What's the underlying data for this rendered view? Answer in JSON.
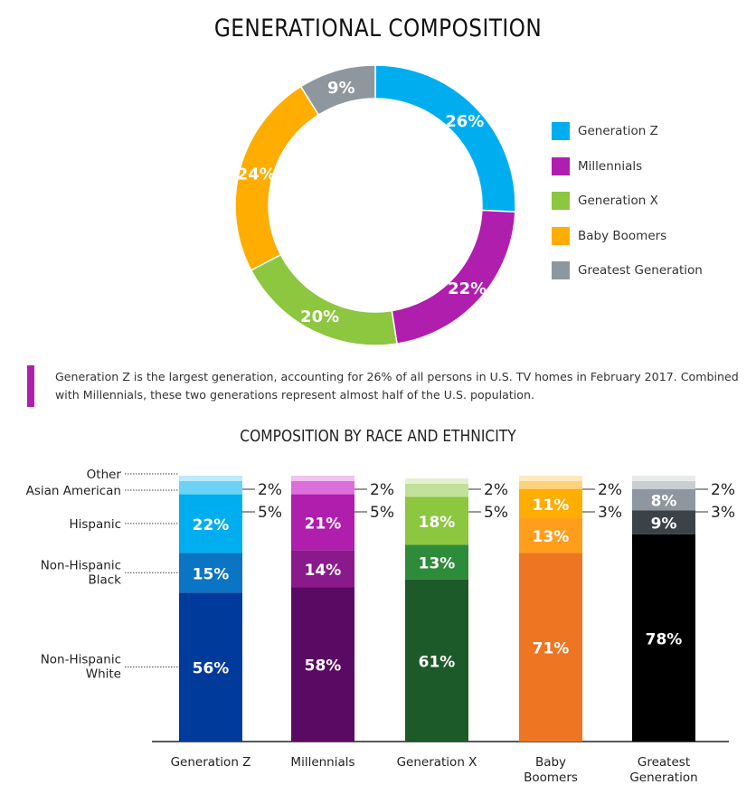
{
  "title": "GENERATIONAL COMPOSITION",
  "legend": [
    {
      "label": "Generation Z",
      "color": "#00aeef"
    },
    {
      "label": "Millennials",
      "color": "#b01eae"
    },
    {
      "label": "Generation X",
      "color": "#8dc63f"
    },
    {
      "label": "Baby Boomers",
      "color": "#ffad00"
    },
    {
      "label": "Greatest Generation",
      "color": "#8e979e"
    }
  ],
  "note": "Generation Z is the largest generation, accounting for 26% of all persons in U.S. TV homes in February 2017. Combined with Millennials, these two generations represent almost half of the U.S. population.",
  "subtitle": "COMPOSITION BY RACE AND ETHNICITY",
  "chart_data": [
    {
      "type": "pie",
      "title": "GENERATIONAL COMPOSITION",
      "categories": [
        "Generation Z",
        "Millennials",
        "Generation X",
        "Baby Boomers",
        "Greatest Generation"
      ],
      "values": [
        26,
        22,
        20,
        24,
        9
      ],
      "labels": [
        "26%",
        "22%",
        "20%",
        "24%",
        "9%"
      ],
      "colors": [
        "#00aeef",
        "#b01eae",
        "#8dc63f",
        "#ffad00",
        "#8e979e"
      ],
      "donut": true,
      "legend_position": "right"
    },
    {
      "type": "bar",
      "stacked": true,
      "title": "COMPOSITION BY RACE AND ETHNICITY",
      "categories": [
        "Generation Z",
        "Millennials",
        "Generation X",
        "Baby Boomers",
        "Greatest Generation"
      ],
      "segment_labels": [
        "Non-Hispanic White",
        "Non-Hispanic Black",
        "Hispanic",
        "Asian American",
        "Other"
      ],
      "series": [
        {
          "name": "Non-Hispanic White",
          "values": [
            56,
            58,
            61,
            71,
            78
          ],
          "labels": [
            "56%",
            "58%",
            "61%",
            "71%",
            "78%"
          ]
        },
        {
          "name": "Non-Hispanic Black",
          "values": [
            15,
            14,
            13,
            13,
            9
          ],
          "labels": [
            "15%",
            "14%",
            "13%",
            "13%",
            "9%"
          ]
        },
        {
          "name": "Hispanic",
          "values": [
            22,
            21,
            18,
            11,
            8
          ],
          "labels": [
            "22%",
            "21%",
            "18%",
            "11%",
            "8%"
          ]
        },
        {
          "name": "Asian American",
          "values": [
            5,
            5,
            5,
            3,
            3
          ],
          "labels": [
            "5%",
            "5%",
            "5%",
            "3%",
            "3%"
          ]
        },
        {
          "name": "Other",
          "values": [
            2,
            2,
            2,
            2,
            2
          ],
          "labels": [
            "2%",
            "2%",
            "2%",
            "2%",
            "2%"
          ]
        }
      ],
      "colors": [
        [
          "#003b9c",
          "#0a74c5",
          "#00aeef",
          "#6cd3f7",
          "#bfeafb"
        ],
        [
          "#5b0a63",
          "#8a1a8c",
          "#b01eae",
          "#dd6fdc",
          "#f1c2f0"
        ],
        [
          "#1d5a2a",
          "#2e8b3a",
          "#8dc63f",
          "#c2e09a",
          "#e4f1d1"
        ],
        [
          "#ee7622",
          "#ff9e1b",
          "#ffad00",
          "#ffd27a",
          "#ffe9bd"
        ],
        [
          "#000000",
          "#3c4348",
          "#8e979e",
          "#c9ced1",
          "#e8ebec"
        ]
      ],
      "ylim": [
        0,
        100
      ]
    }
  ]
}
